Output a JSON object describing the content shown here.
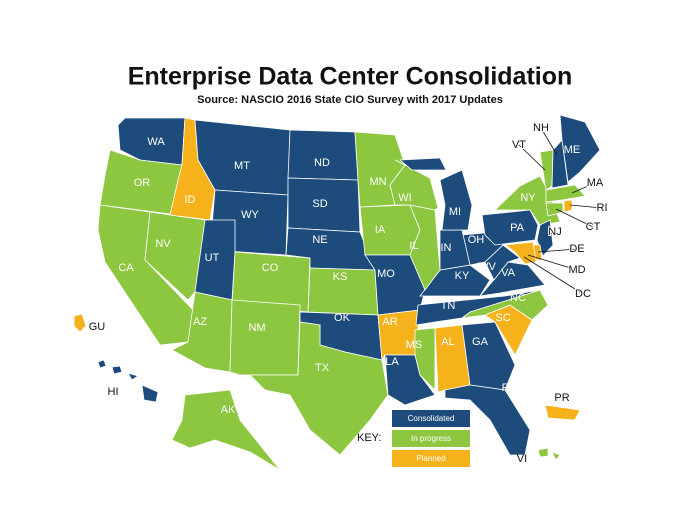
{
  "header": {
    "title": "Enterprise Data Center Consolidation",
    "subtitle": "Source: NASCIO 2016 State CIO Survey with 2017 Updates"
  },
  "key": {
    "label": "KEY:",
    "items": [
      {
        "name": "Consolidated",
        "color": "#1c4b7c"
      },
      {
        "name": "In progress",
        "color": "#8dc63f"
      },
      {
        "name": "Planned",
        "color": "#f6b21b"
      }
    ]
  },
  "states": [
    {
      "label": "WA",
      "status": "Consolidated"
    },
    {
      "label": "OR",
      "status": "In progress"
    },
    {
      "label": "CA",
      "status": "In progress"
    },
    {
      "label": "NV",
      "status": "In progress"
    },
    {
      "label": "ID",
      "status": "Planned"
    },
    {
      "label": "MT",
      "status": "Consolidated"
    },
    {
      "label": "WY",
      "status": "Consolidated"
    },
    {
      "label": "UT",
      "status": "Consolidated"
    },
    {
      "label": "CO",
      "status": "In progress"
    },
    {
      "label": "AZ",
      "status": "In progress"
    },
    {
      "label": "NM",
      "status": "In progress"
    },
    {
      "label": "ND",
      "status": "Consolidated"
    },
    {
      "label": "SD",
      "status": "Consolidated"
    },
    {
      "label": "NE",
      "status": "Consolidated"
    },
    {
      "label": "KS",
      "status": "In progress"
    },
    {
      "label": "OK",
      "status": "Consolidated"
    },
    {
      "label": "TX",
      "status": "In progress"
    },
    {
      "label": "MN",
      "status": "In progress"
    },
    {
      "label": "IA",
      "status": "In progress"
    },
    {
      "label": "MO",
      "status": "Consolidated"
    },
    {
      "label": "AR",
      "status": "Planned"
    },
    {
      "label": "LA",
      "status": "Consolidated"
    },
    {
      "label": "MS",
      "status": "In progress"
    },
    {
      "label": "AL",
      "status": "Planned"
    },
    {
      "label": "GA",
      "status": "Consolidated"
    },
    {
      "label": "FL",
      "status": "Consolidated"
    },
    {
      "label": "SC",
      "status": "Planned"
    },
    {
      "label": "NC",
      "status": "In progress"
    },
    {
      "label": "TN",
      "status": "Consolidated"
    },
    {
      "label": "KY",
      "status": "Consolidated"
    },
    {
      "label": "VA",
      "status": "Consolidated"
    },
    {
      "label": "WV",
      "status": "Consolidated"
    },
    {
      "label": "OH",
      "status": "Consolidated"
    },
    {
      "label": "IN",
      "status": "Consolidated"
    },
    {
      "label": "IL",
      "status": "In progress"
    },
    {
      "label": "WI",
      "status": "In progress"
    },
    {
      "label": "MI",
      "status": "Consolidated"
    },
    {
      "label": "PA",
      "status": "Consolidated"
    },
    {
      "label": "NY",
      "status": "In progress"
    },
    {
      "label": "VT",
      "status": "In progress"
    },
    {
      "label": "NH",
      "status": "Consolidated"
    },
    {
      "label": "ME",
      "status": "Consolidated"
    },
    {
      "label": "MA",
      "status": "In progress"
    },
    {
      "label": "CT",
      "status": "In progress"
    },
    {
      "label": "RI",
      "status": "Planned"
    },
    {
      "label": "NJ",
      "status": "Consolidated"
    },
    {
      "label": "DE",
      "status": "Planned"
    },
    {
      "label": "MD",
      "status": "Planned"
    },
    {
      "label": "AK",
      "status": "In progress"
    },
    {
      "label": "HI",
      "status": "Consolidated"
    },
    {
      "label": "GU",
      "status": "Planned"
    },
    {
      "label": "PR",
      "status": "Planned"
    },
    {
      "label": "VI",
      "status": "In progress"
    },
    {
      "label": "DC"
    }
  ]
}
